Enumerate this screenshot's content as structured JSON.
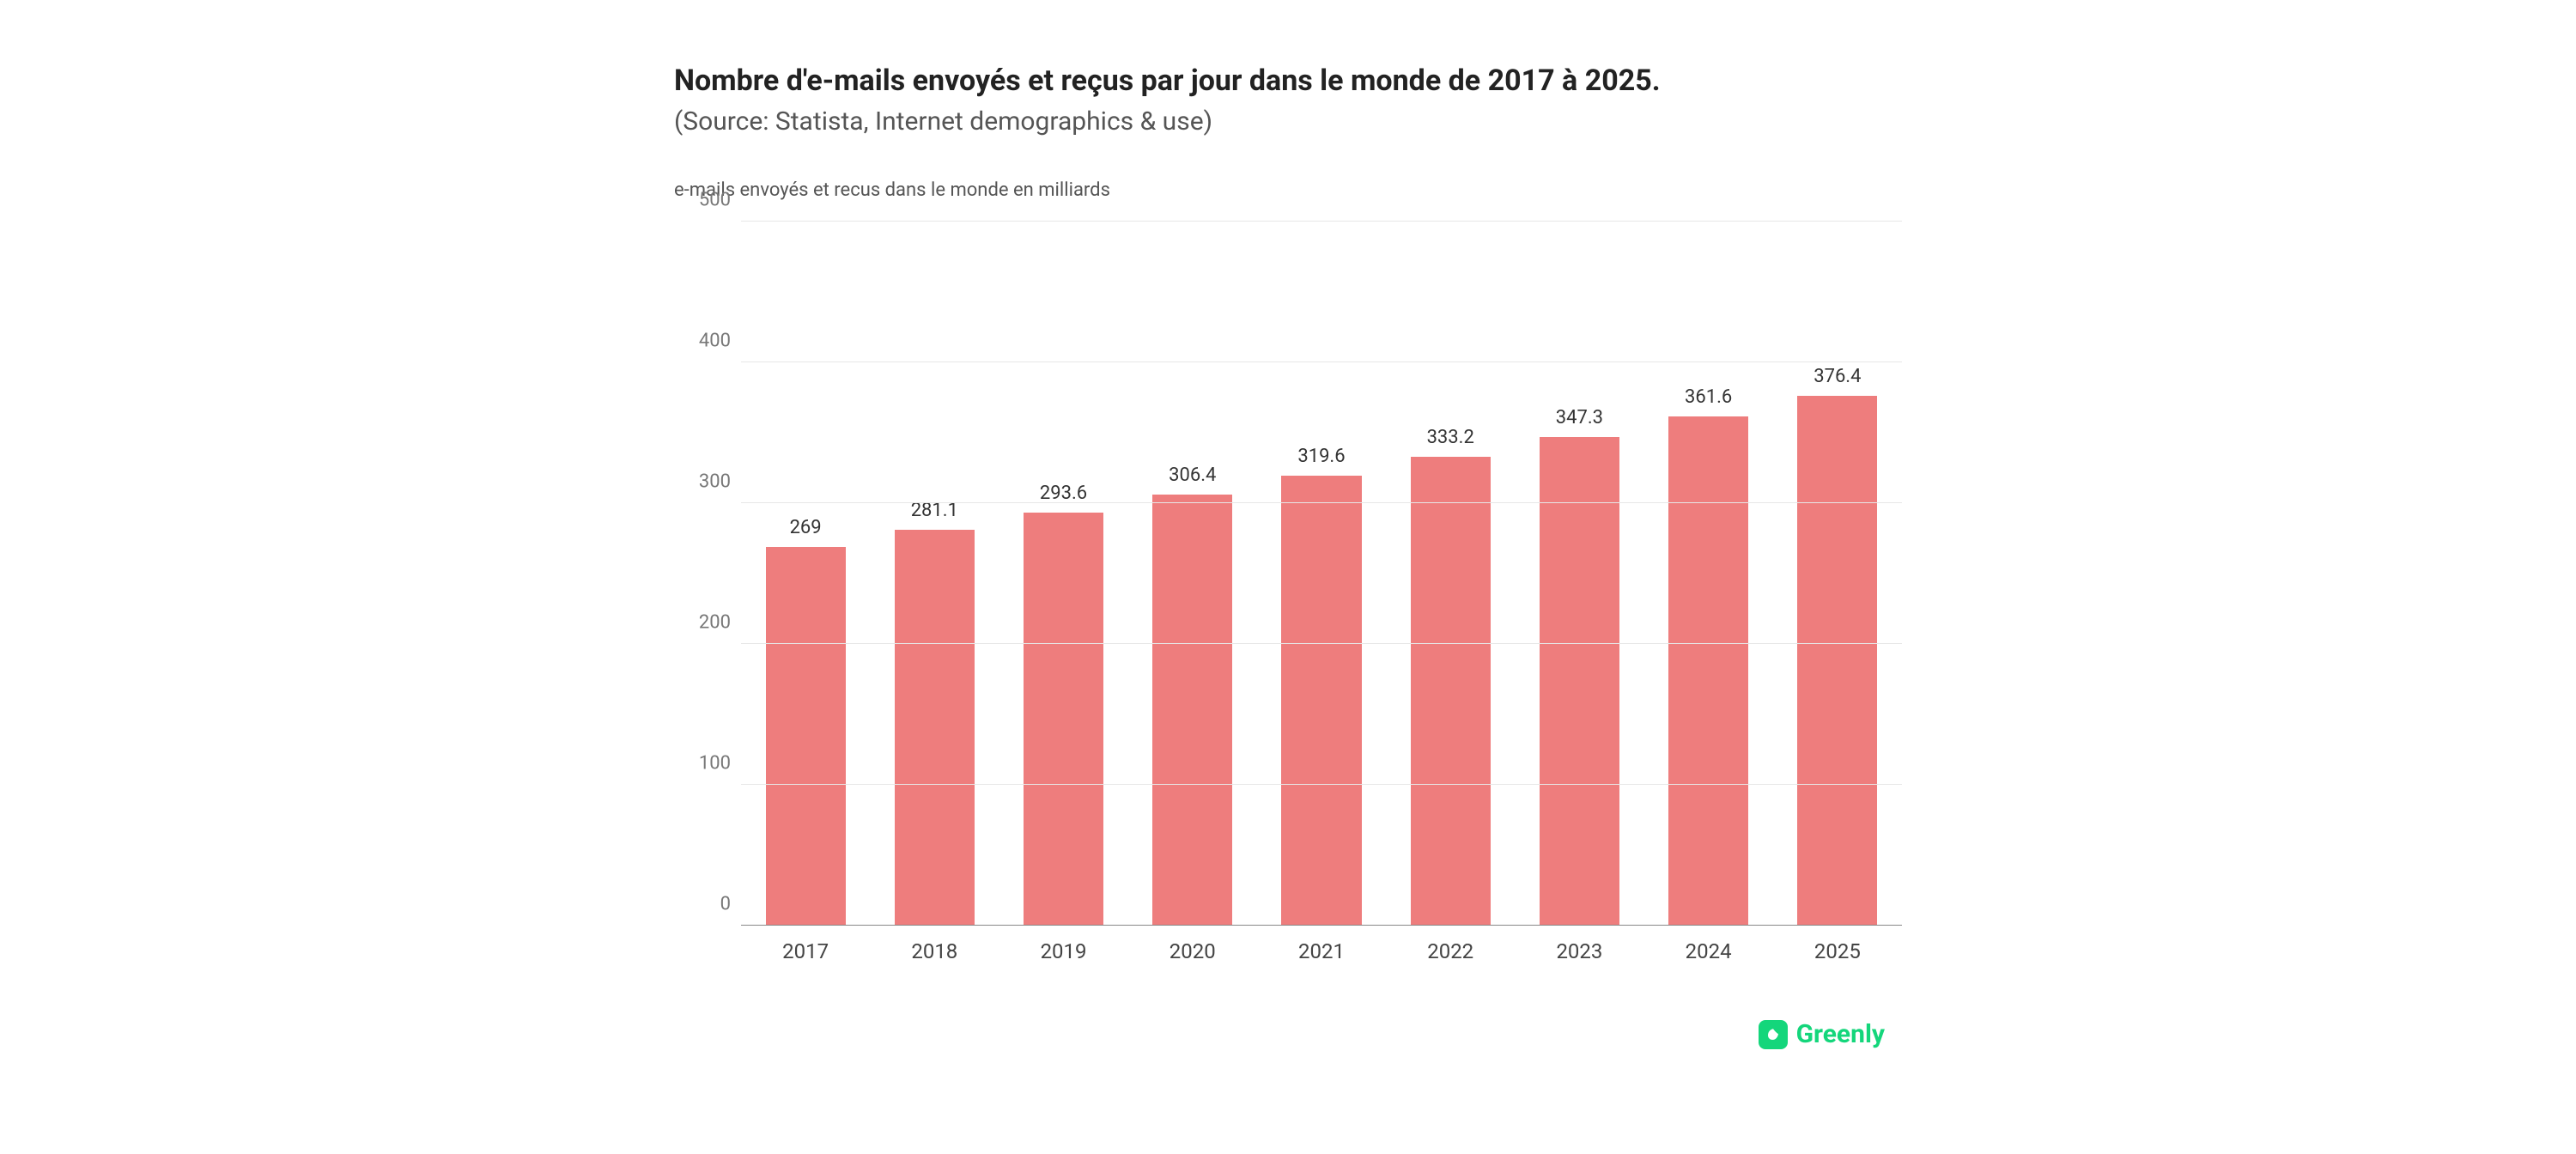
{
  "title": "Nombre d'e-mails envoyés et reçus par jour dans le monde de 2017 à 2025.",
  "source": "(Source: Statista, Internet demographics & use)",
  "ylabel": "e-mails envoyés et recus dans le monde en milliards",
  "chart": {
    "type": "bar",
    "categories": [
      "2017",
      "2018",
      "2019",
      "2020",
      "2021",
      "2022",
      "2023",
      "2024",
      "2025"
    ],
    "values": [
      269,
      281.1,
      293.6,
      306.4,
      319.6,
      333.2,
      347.3,
      361.6,
      376.4
    ],
    "value_labels": [
      "269",
      "281.1",
      "293.6",
      "306.4",
      "319.6",
      "333.2",
      "347.3",
      "361.6",
      "376.4"
    ],
    "bar_color": "#ee7d7d",
    "background_color": "#ffffff",
    "grid_color": "#e7e7e7",
    "axis_color": "#888888",
    "ylim": [
      0,
      500
    ],
    "ytick_step": 100,
    "yticks": [
      0,
      100,
      200,
      300,
      400,
      500
    ],
    "bar_width_pct": 62,
    "title_color": "#222222",
    "title_fontsize": 34,
    "source_color": "#555555",
    "source_fontsize": 30,
    "ylabel_fontsize": 22,
    "tick_fontsize": 22,
    "value_label_fontsize": 22
  },
  "brand": {
    "name": "Greenly",
    "color": "#14d67b",
    "badge_bg": "#14d67b",
    "badge_fg": "#ffffff"
  }
}
